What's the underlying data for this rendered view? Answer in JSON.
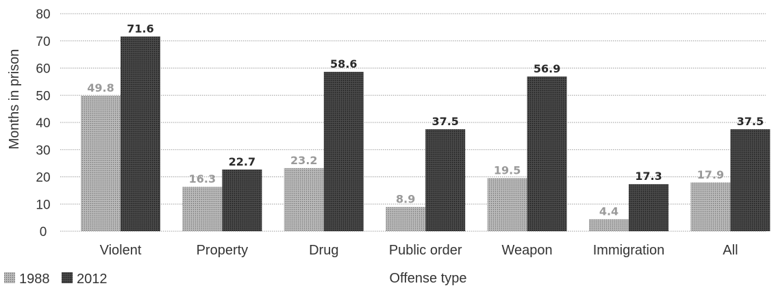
{
  "chart_data": {
    "type": "bar",
    "title": "",
    "xlabel": "Offense type",
    "ylabel": "Months in prison",
    "ylim": [
      0,
      80
    ],
    "yticks": [
      0,
      10,
      20,
      30,
      40,
      50,
      60,
      70,
      80
    ],
    "grid": true,
    "legend": "bottom-left",
    "categories": [
      "Violent",
      "Property",
      "Drug",
      "Public order",
      "Weapon",
      "Immigration",
      "All"
    ],
    "series": [
      {
        "name": "1988",
        "values": [
          49.8,
          16.3,
          23.2,
          8.9,
          19.5,
          4.4,
          17.9
        ],
        "labels": [
          "49.8",
          "16.3",
          "23.2",
          "8.9",
          "19.5",
          "4.4",
          "17.9"
        ],
        "color": "#9a9a9a",
        "label_color": "#9a9a9a"
      },
      {
        "name": "2012",
        "values": [
          71.6,
          22.7,
          58.6,
          37.5,
          56.9,
          17.3,
          37.5
        ],
        "labels": [
          "71.6",
          "22.7",
          "58.6",
          "37.5",
          "56.9",
          "17.3",
          "37.5"
        ],
        "color": "#3a3a3a",
        "label_color": "#2a2a2a"
      }
    ]
  }
}
